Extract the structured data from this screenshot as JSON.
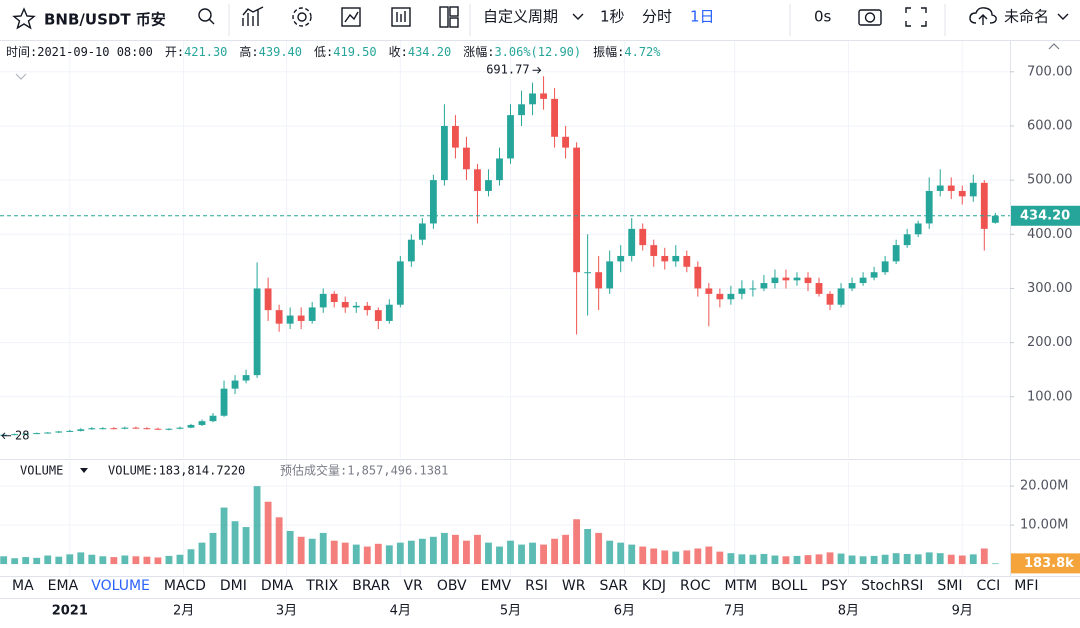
{
  "toolbar": {
    "symbol": "BNB/USDT 币安",
    "custom_period": "自定义周期",
    "periods": [
      "1秒",
      "分时",
      "1日"
    ],
    "active_period": 2,
    "timer": "0s",
    "layout_name": "未命名"
  },
  "info": [
    {
      "label": "时间:",
      "value": "2021-09-10 08:00"
    },
    {
      "label": "开:",
      "value": "421.30"
    },
    {
      "label": "高:",
      "value": "439.40"
    },
    {
      "label": "低:",
      "value": "419.50"
    },
    {
      "label": "收:",
      "value": "434.20"
    },
    {
      "label": "涨幅:",
      "value": "3.06%(12.90)"
    },
    {
      "label": "振幅:",
      "value": "4.72%"
    }
  ],
  "volume_header": {
    "name": "VOLUME",
    "value": "VOLUME:183,814.7220",
    "estimate": "预估成交量:1,857,496.1381"
  },
  "indicators": [
    "MA",
    "EMA",
    "VOLUME",
    "MACD",
    "DMI",
    "DMA",
    "TRIX",
    "BRAR",
    "VR",
    "OBV",
    "EMV",
    "RSI",
    "WR",
    "SAR",
    "KDJ",
    "ROC",
    "MTM",
    "BOLL",
    "PSY",
    "StochRSI",
    "SMI",
    "CCI",
    "MFI"
  ],
  "active_indicator": 2,
  "chart_data": {
    "type": "candlestick",
    "x": [
      -18,
      -15,
      -12,
      -9,
      -6,
      -3,
      0,
      3,
      6,
      9,
      12,
      15,
      18,
      21,
      24,
      27,
      30,
      33,
      36,
      39,
      42,
      45,
      48,
      51,
      54,
      57,
      60,
      63,
      66,
      69,
      72,
      75,
      78,
      81,
      84,
      87,
      90,
      93,
      96,
      99,
      102,
      105,
      108,
      111,
      114,
      117,
      120,
      123,
      126,
      129,
      132,
      135,
      138,
      141,
      144,
      147,
      150,
      153,
      156,
      159,
      162,
      165,
      168,
      171,
      174,
      177,
      180,
      183,
      186,
      189,
      192,
      195,
      198,
      201,
      204,
      207,
      210,
      213,
      216,
      219,
      222,
      225,
      228,
      231,
      234,
      237,
      240,
      243,
      246,
      249,
      252
    ],
    "open": [
      29,
      30,
      31,
      32,
      33,
      34,
      36,
      37,
      40,
      42,
      42,
      41,
      43,
      42,
      41,
      40,
      41,
      43,
      48,
      55,
      65,
      115,
      130,
      140,
      300,
      260,
      235,
      250,
      240,
      265,
      290,
      275,
      265,
      268,
      260,
      240,
      270,
      350,
      390,
      420,
      500,
      600,
      560,
      520,
      480,
      500,
      540,
      620,
      640,
      660,
      650,
      580,
      560,
      330,
      330,
      300,
      350,
      360,
      410,
      380,
      360,
      350,
      360,
      340,
      300,
      290,
      280,
      290,
      300,
      300,
      310,
      320,
      315,
      320,
      310,
      290,
      270,
      300,
      310,
      320,
      330,
      350,
      380,
      400,
      420,
      480,
      490,
      480,
      470,
      495,
      421.3
    ],
    "high": [
      31,
      32,
      33,
      34,
      35,
      37,
      39,
      42,
      44,
      44,
      44,
      45,
      45,
      44,
      43,
      42,
      45,
      50,
      58,
      70,
      130,
      140,
      150,
      348,
      320,
      270,
      265,
      265,
      275,
      300,
      295,
      285,
      275,
      275,
      265,
      280,
      360,
      400,
      430,
      510,
      640,
      620,
      580,
      530,
      520,
      560,
      640,
      665,
      680,
      691.77,
      670,
      600,
      570,
      400,
      360,
      370,
      380,
      430,
      420,
      390,
      375,
      380,
      370,
      350,
      310,
      300,
      305,
      315,
      315,
      325,
      335,
      335,
      330,
      330,
      320,
      295,
      310,
      320,
      330,
      340,
      360,
      390,
      410,
      425,
      505,
      520,
      505,
      490,
      510,
      500,
      439.4
    ],
    "low": [
      28,
      29,
      30,
      31,
      32,
      33,
      35,
      36,
      39,
      40,
      40,
      40,
      41,
      40,
      39,
      38,
      40,
      42,
      46,
      53,
      63,
      105,
      125,
      135,
      240,
      220,
      225,
      225,
      235,
      255,
      265,
      255,
      255,
      250,
      225,
      235,
      265,
      340,
      380,
      410,
      490,
      540,
      500,
      420,
      470,
      490,
      530,
      600,
      620,
      630,
      560,
      540,
      215,
      250,
      260,
      290,
      330,
      350,
      370,
      340,
      335,
      340,
      330,
      285,
      230,
      265,
      270,
      280,
      285,
      295,
      300,
      300,
      305,
      295,
      285,
      260,
      265,
      295,
      305,
      315,
      325,
      345,
      375,
      395,
      410,
      470,
      465,
      455,
      460,
      370,
      419.5
    ],
    "close": [
      30,
      31,
      32,
      33,
      34,
      36,
      37,
      40,
      42,
      42,
      41,
      43,
      42,
      41,
      40,
      41,
      43,
      48,
      55,
      65,
      115,
      130,
      140,
      300,
      260,
      235,
      250,
      240,
      265,
      290,
      275,
      265,
      268,
      260,
      240,
      270,
      350,
      390,
      420,
      500,
      600,
      560,
      520,
      480,
      500,
      540,
      620,
      640,
      660,
      650,
      580,
      560,
      330,
      330,
      300,
      350,
      360,
      410,
      380,
      360,
      350,
      360,
      340,
      300,
      290,
      280,
      290,
      300,
      300,
      310,
      320,
      315,
      320,
      310,
      290,
      270,
      300,
      310,
      320,
      330,
      350,
      380,
      400,
      420,
      480,
      490,
      480,
      470,
      495,
      410,
      434.2
    ],
    "volume": [
      2000000,
      1500000,
      1800000,
      1600000,
      2200000,
      1900000,
      2500000,
      3000000,
      2400000,
      2000000,
      1800000,
      2200000,
      2000000,
      1900000,
      1700000,
      2100000,
      2400000,
      3800000,
      5500000,
      8000000,
      14500000,
      11000000,
      9500000,
      20000000,
      16000000,
      12000000,
      8500000,
      7000000,
      6500000,
      8000000,
      6000000,
      5500000,
      5000000,
      4500000,
      5200000,
      4800000,
      5500000,
      6000000,
      6500000,
      7000000,
      8000000,
      7500000,
      6000000,
      7500000,
      5500000,
      4500000,
      6000000,
      5000000,
      5500000,
      5000000,
      6500000,
      7500000,
      11500000,
      9000000,
      8000000,
      6000000,
      5500000,
      5000000,
      4500000,
      4000000,
      3500000,
      3200000,
      3500000,
      4000000,
      4500000,
      3200000,
      2800000,
      2500000,
      2400000,
      2600000,
      2200000,
      2000000,
      2100000,
      2300000,
      2500000,
      3000000,
      2700000,
      2200000,
      2000000,
      2100000,
      2400000,
      2800000,
      2600000,
      2500000,
      3000000,
      2800000,
      2400000,
      2200000,
      2500000,
      4000000,
      183814.722
    ],
    "xlim": [
      -19,
      256
    ],
    "xticks": [
      {
        "value": 0,
        "label": "2021"
      },
      {
        "value": 31,
        "label": "2月"
      },
      {
        "value": 59,
        "label": "3月"
      },
      {
        "value": 90,
        "label": "4月"
      },
      {
        "value": 120,
        "label": "5月"
      },
      {
        "value": 151,
        "label": "6月"
      },
      {
        "value": 181,
        "label": "7月"
      },
      {
        "value": 212,
        "label": "8月"
      },
      {
        "value": 243,
        "label": "9月"
      }
    ],
    "ylim": [
      -13,
      755
    ],
    "yticks": [
      {
        "value": 100,
        "label": "100.00"
      },
      {
        "value": 200,
        "label": "200.00"
      },
      {
        "value": 300,
        "label": "300.00"
      },
      {
        "value": 400,
        "label": "400.00"
      },
      {
        "value": 500,
        "label": "500.00"
      },
      {
        "value": 600,
        "label": "600.00"
      },
      {
        "value": 700,
        "label": "700.00"
      }
    ],
    "volume_ylim": [
      -2800000,
      26700000
    ],
    "volume_yticks": [
      {
        "value": 10000000,
        "label": "10.00M"
      },
      {
        "value": 20000000,
        "label": "20.00M"
      }
    ],
    "last_price": {
      "value": 434.2,
      "label": "434.20"
    },
    "last_volume": {
      "value": 183814.722,
      "label": "183.8k"
    },
    "max_marker": 691.77,
    "min_marker": 28,
    "up_color": "#26a69a",
    "down_color": "#ef5350",
    "volume_label_color": "#f5a33b",
    "grid": true
  }
}
